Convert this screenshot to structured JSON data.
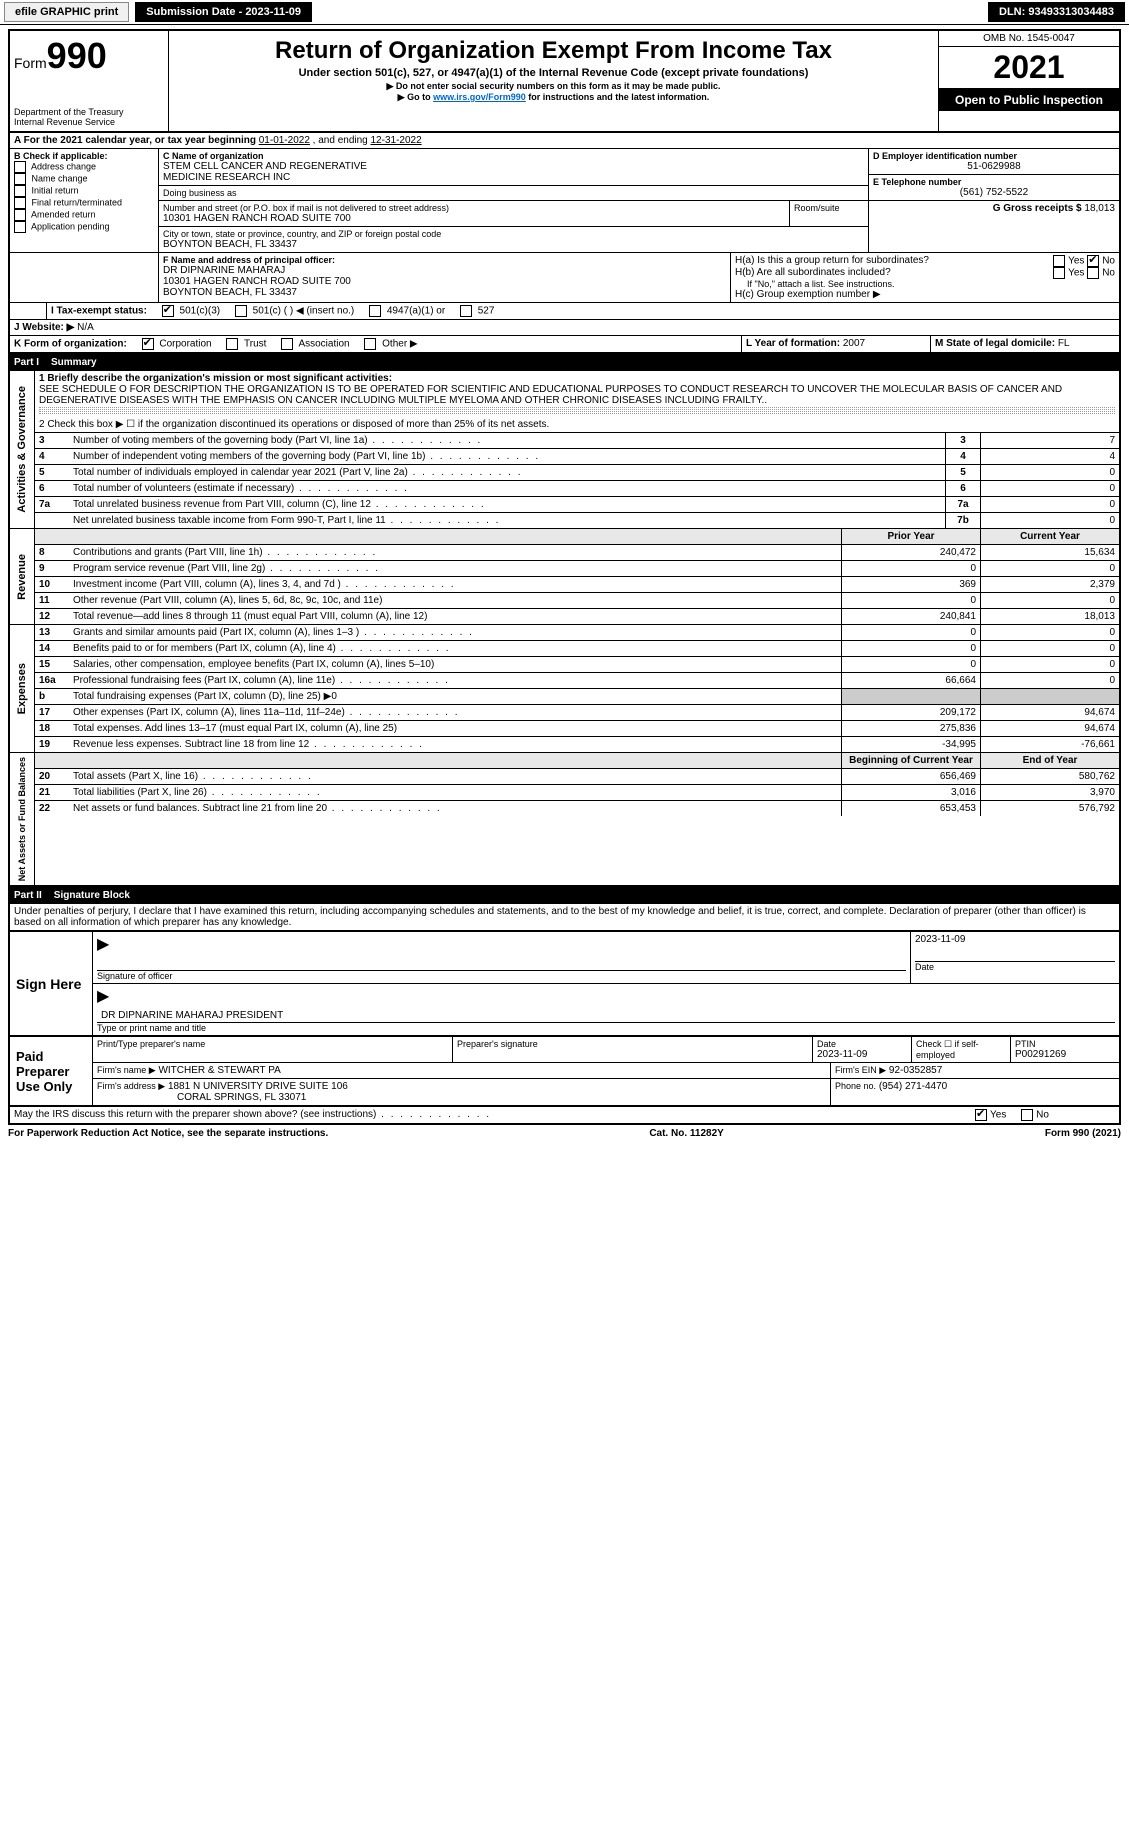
{
  "topbar": {
    "efile_label": "efile GRAPHIC print",
    "submission_btn": "Submission Date - 2023-11-09",
    "dln_label": "DLN: 93493313034483"
  },
  "header_left": {
    "form_prefix": "Form",
    "form_number": "990",
    "dept1": "Department of the Treasury",
    "dept2": "Internal Revenue Service"
  },
  "header_center": {
    "title": "Return of Organization Exempt From Income Tax",
    "sub1": "Under section 501(c), 527, or 4947(a)(1) of the Internal Revenue Code (except private foundations)",
    "sub2": "▶ Do not enter social security numbers on this form as it may be made public.",
    "sub3_pre": "▶ Go to ",
    "sub3_link": "www.irs.gov/Form990",
    "sub3_post": " for instructions and the latest information."
  },
  "header_right": {
    "omb": "OMB No. 1545-0047",
    "year": "2021",
    "open": "Open to Public Inspection"
  },
  "period": {
    "line_a_pre": "A For the 2021 calendar year, or tax year beginning ",
    "begin": "01-01-2022",
    "mid": " , and ending ",
    "end": "12-31-2022"
  },
  "boxB": {
    "label": "B Check if applicable:",
    "opts": [
      "Address change",
      "Name change",
      "Initial return",
      "Final return/terminated",
      "Amended return",
      "Application pending"
    ]
  },
  "boxC": {
    "label": "C Name of organization",
    "name1": "STEM CELL CANCER AND REGENERATIVE",
    "name2": "MEDICINE RESEARCH INC",
    "dba_label": "Doing business as",
    "addr_label": "Number and street (or P.O. box if mail is not delivered to street address)",
    "room_label": "Room/suite",
    "addr": "10301 HAGEN RANCH ROAD SUITE 700",
    "city_label": "City or town, state or province, country, and ZIP or foreign postal code",
    "city": "BOYNTON BEACH, FL  33437"
  },
  "boxD": {
    "label": "D Employer identification number",
    "val": "51-0629988"
  },
  "boxE": {
    "label": "E Telephone number",
    "val": "(561) 752-5522"
  },
  "boxG": {
    "label": "G Gross receipts $ ",
    "val": "18,013"
  },
  "boxF": {
    "label": "F Name and address of principal officer:",
    "l1": "DR DIPNARINE MAHARAJ",
    "l2": "10301 HAGEN RANCH ROAD SUITE 700",
    "l3": "BOYNTON BEACH, FL  33437"
  },
  "boxH": {
    "ha": "H(a)  Is this a group return for subordinates?",
    "hb": "H(b)  Are all subordinates included?",
    "hb_note": "If \"No,\" attach a list. See instructions.",
    "hc": "H(c)  Group exemption number ▶",
    "yes": "Yes",
    "no": "No"
  },
  "boxI": {
    "label": "I  Tax-exempt status:",
    "o1": "501(c)(3)",
    "o2": "501(c) (   ) ◀ (insert no.)",
    "o3": "4947(a)(1) or",
    "o4": "527"
  },
  "boxJ": {
    "label": "J  Website: ▶",
    "val": "N/A"
  },
  "boxK": {
    "label": "K Form of organization:",
    "o1": "Corporation",
    "o2": "Trust",
    "o3": "Association",
    "o4": "Other ▶"
  },
  "boxL": {
    "label": "L Year of formation: ",
    "val": "2007"
  },
  "boxM": {
    "label": "M State of legal domicile: ",
    "val": "FL"
  },
  "part1": {
    "header_label": "Part I",
    "header_title": "Summary",
    "line1_label": "1  Briefly describe the organization's mission or most significant activities:",
    "line1_text": "SEE SCHEDULE O FOR DESCRIPTION THE ORGANIZATION IS TO BE OPERATED FOR SCIENTIFIC AND EDUCATIONAL PURPOSES TO CONDUCT RESEARCH TO UNCOVER THE MOLECULAR BASIS OF CANCER AND DEGENERATIVE DISEASES WITH THE EMPHASIS ON CANCER INCLUDING MULTIPLE MYELOMA AND OTHER CHRONIC DISEASES INCLUDING FRAILTY..",
    "line2": "2  Check this box ▶ ☐ if the organization discontinued its operations or disposed of more than 25% of its net assets.",
    "line3": "Number of voting members of the governing body (Part VI, line 1a)",
    "line4": "Number of independent voting members of the governing body (Part VI, line 1b)",
    "line5": "Total number of individuals employed in calendar year 2021 (Part V, line 2a)",
    "line6": "Total number of volunteers (estimate if necessary)",
    "line7a": "Total unrelated business revenue from Part VIII, column (C), line 12",
    "line7b": "Net unrelated business taxable income from Form 990-T, Part I, line 11",
    "vals": {
      "3": "7",
      "4": "4",
      "5": "0",
      "6": "0",
      "7a": "0",
      "7b": "0"
    },
    "col_prior": "Prior Year",
    "col_current": "Current Year",
    "rev_label": "Revenue",
    "rev": {
      "8": {
        "t": "Contributions and grants (Part VIII, line 1h)",
        "p": "240,472",
        "c": "15,634"
      },
      "9": {
        "t": "Program service revenue (Part VIII, line 2g)",
        "p": "0",
        "c": "0"
      },
      "10": {
        "t": "Investment income (Part VIII, column (A), lines 3, 4, and 7d )",
        "p": "369",
        "c": "2,379"
      },
      "11": {
        "t": "Other revenue (Part VIII, column (A), lines 5, 6d, 8c, 9c, 10c, and 11e)",
        "p": "0",
        "c": "0"
      },
      "12": {
        "t": "Total revenue—add lines 8 through 11 (must equal Part VIII, column (A), line 12)",
        "p": "240,841",
        "c": "18,013"
      }
    },
    "exp_label": "Expenses",
    "exp": {
      "13": {
        "t": "Grants and similar amounts paid (Part IX, column (A), lines 1–3 )",
        "p": "0",
        "c": "0"
      },
      "14": {
        "t": "Benefits paid to or for members (Part IX, column (A), line 4)",
        "p": "0",
        "c": "0"
      },
      "15": {
        "t": "Salaries, other compensation, employee benefits (Part IX, column (A), lines 5–10)",
        "p": "0",
        "c": "0"
      },
      "16a": {
        "t": "Professional fundraising fees (Part IX, column (A), line 11e)",
        "p": "66,664",
        "c": "0"
      },
      "b": {
        "t": "Total fundraising expenses (Part IX, column (D), line 25) ▶0"
      },
      "17": {
        "t": "Other expenses (Part IX, column (A), lines 11a–11d, 11f–24e)",
        "p": "209,172",
        "c": "94,674"
      },
      "18": {
        "t": "Total expenses. Add lines 13–17 (must equal Part IX, column (A), line 25)",
        "p": "275,836",
        "c": "94,674"
      },
      "19": {
        "t": "Revenue less expenses. Subtract line 18 from line 12",
        "p": "-34,995",
        "c": "-76,661"
      }
    },
    "na_label": "Net Assets or Fund Balances",
    "na_col1": "Beginning of Current Year",
    "na_col2": "End of Year",
    "na": {
      "20": {
        "t": "Total assets (Part X, line 16)",
        "p": "656,469",
        "c": "580,762"
      },
      "21": {
        "t": "Total liabilities (Part X, line 26)",
        "p": "3,016",
        "c": "3,970"
      },
      "22": {
        "t": "Net assets or fund balances. Subtract line 21 from line 20",
        "p": "653,453",
        "c": "576,792"
      }
    },
    "gov_label": "Activities & Governance"
  },
  "part2": {
    "header_label": "Part II",
    "header_title": "Signature Block",
    "penalty": "Under penalties of perjury, I declare that I have examined this return, including accompanying schedules and statements, and to the best of my knowledge and belief, it is true, correct, and complete. Declaration of preparer (other than officer) is based on all information of which preparer has any knowledge.",
    "sign_here": "Sign Here",
    "sig_officer": "Signature of officer",
    "sig_date": "Date",
    "sig_date_val": "2023-11-09",
    "officer_name": "DR DIPNARINE MAHARAJ PRESIDENT",
    "officer_sub": "Type or print name and title",
    "paid": "Paid Preparer Use Only",
    "prep_name_label": "Print/Type preparer's name",
    "prep_sig_label": "Preparer's signature",
    "prep_date_label": "Date",
    "prep_date": "2023-11-09",
    "prep_check": "Check ☐ if self-employed",
    "ptin_label": "PTIN",
    "ptin": "P00291269",
    "firm_name_label": "Firm's name   ▶",
    "firm_name": "WITCHER & STEWART PA",
    "firm_ein_label": "Firm's EIN ▶",
    "firm_ein": "92-0352857",
    "firm_addr_label": "Firm's address ▶",
    "firm_addr1": "1881 N UNIVERSITY DRIVE SUITE 106",
    "firm_addr2": "CORAL SPRINGS, FL  33071",
    "phone_label": "Phone no.",
    "phone": "(954) 271-4470",
    "may_irs": "May the IRS discuss this return with the preparer shown above? (see instructions)",
    "yes": "Yes",
    "no": "No"
  },
  "footer": {
    "left": "For Paperwork Reduction Act Notice, see the separate instructions.",
    "mid": "Cat. No. 11282Y",
    "right_pre": "Form ",
    "right_form": "990",
    "right_post": " (2021)"
  }
}
